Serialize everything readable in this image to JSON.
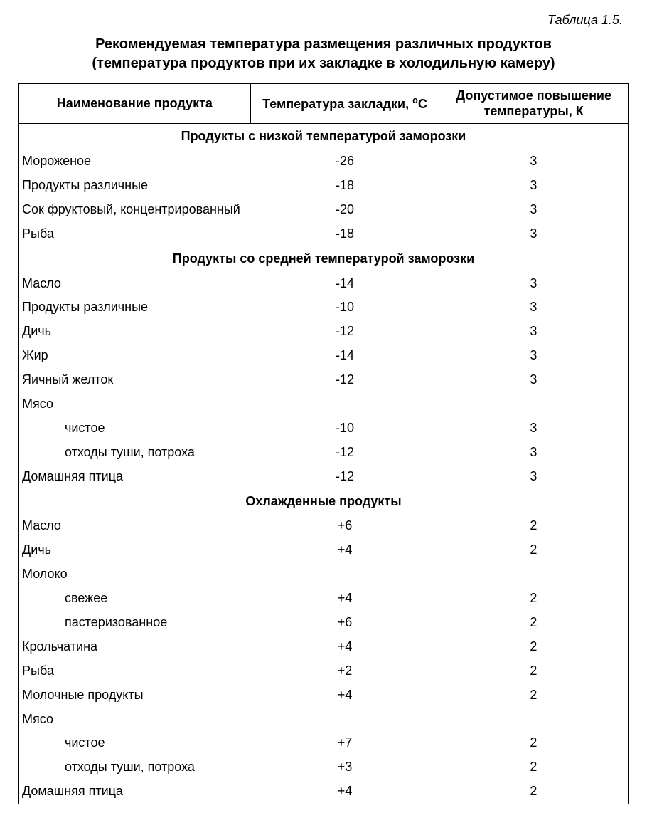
{
  "caption": "Таблица 1.5.",
  "title_line1": "Рекомендуемая температура размещения различных продуктов",
  "title_line2": "(температура продуктов при их закладке в холодильную камеру)",
  "headers": {
    "col1": "Наименование продукта",
    "col2_prefix": "Температура закладки, ",
    "col2_unit": "С",
    "col3_line1": "Допустимое повышение",
    "col3_line2": "температуры, К"
  },
  "sections": [
    {
      "heading": "Продукты с низкой температурой заморозки",
      "rows": [
        {
          "name": "Мороженое",
          "temp": "-26",
          "allow": "3",
          "indent": false
        },
        {
          "name": "Продукты различные",
          "temp": "-18",
          "allow": "3",
          "indent": false
        },
        {
          "name": "Сок фруктовый, концентрированный",
          "temp": "-20",
          "allow": "3",
          "indent": false
        },
        {
          "name": "Рыба",
          "temp": "-18",
          "allow": "3",
          "indent": false
        }
      ]
    },
    {
      "heading": "Продукты со средней температурой заморозки",
      "rows": [
        {
          "name": "Масло",
          "temp": "-14",
          "allow": "3",
          "indent": false
        },
        {
          "name": "Продукты различные",
          "temp": "-10",
          "allow": "3",
          "indent": false
        },
        {
          "name": "Дичь",
          "temp": "-12",
          "allow": "3",
          "indent": false
        },
        {
          "name": "Жир",
          "temp": "-14",
          "allow": "3",
          "indent": false
        },
        {
          "name": "Яичный желток",
          "temp": "-12",
          "allow": "3",
          "indent": false
        },
        {
          "name": "Мясо",
          "temp": "",
          "allow": "",
          "indent": false
        },
        {
          "name": "чистое",
          "temp": "-10",
          "allow": "3",
          "indent": true
        },
        {
          "name": "отходы туши, потроха",
          "temp": "-12",
          "allow": "3",
          "indent": true
        },
        {
          "name": "Домашняя птица",
          "temp": "-12",
          "allow": "3",
          "indent": false
        }
      ]
    },
    {
      "heading": "Охлажденные продукты",
      "rows": [
        {
          "name": "Масло",
          "temp": "+6",
          "allow": "2",
          "indent": false
        },
        {
          "name": "Дичь",
          "temp": "+4",
          "allow": "2",
          "indent": false
        },
        {
          "name": "Молоко",
          "temp": "",
          "allow": "",
          "indent": false
        },
        {
          "name": "свежее",
          "temp": "+4",
          "allow": "2",
          "indent": true
        },
        {
          "name": "пастеризованное",
          "temp": "+6",
          "allow": "2",
          "indent": true
        },
        {
          "name": "Крольчатина",
          "temp": "+4",
          "allow": "2",
          "indent": false
        },
        {
          "name": "Рыба",
          "temp": "+2",
          "allow": "2",
          "indent": false
        },
        {
          "name": "Молочные продукты",
          "temp": "+4",
          "allow": "2",
          "indent": false
        },
        {
          "name": "Мясо",
          "temp": "",
          "allow": "",
          "indent": false
        },
        {
          "name": "чистое",
          "temp": "+7",
          "allow": "2",
          "indent": true
        },
        {
          "name": "отходы туши, потроха",
          "temp": "+3",
          "allow": "2",
          "indent": true
        },
        {
          "name": "Домашняя птица",
          "temp": "+4",
          "allow": "2",
          "indent": false
        }
      ]
    }
  ],
  "col_widths": {
    "col1": "38%",
    "col2": "31%",
    "col3": "31%"
  }
}
